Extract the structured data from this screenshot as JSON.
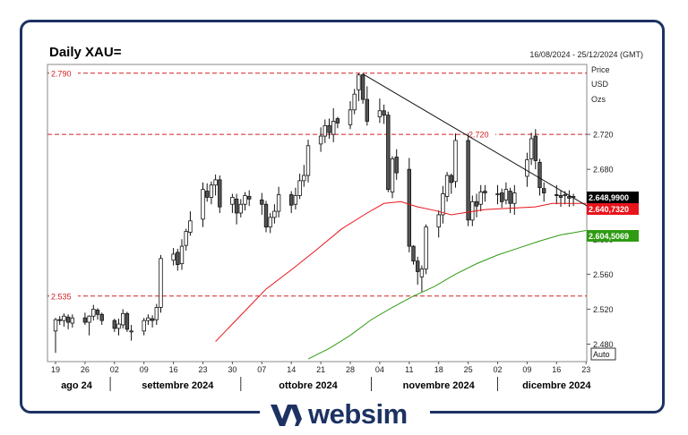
{
  "header": {
    "title": "Daily XAU=",
    "date_range": "16/08/2024 - 25/12/2024 (GMT)",
    "price_label": "Price",
    "currency_label": "USD",
    "unit_label": "Ozs",
    "auto_label": "Auto"
  },
  "brand": {
    "name": "websim",
    "color": "#1d3263"
  },
  "chart_data": {
    "type": "candlestick",
    "ylim": [
      2460,
      2800
    ],
    "yticks": [
      2480,
      2520,
      2560,
      2600,
      2640,
      2680,
      2720
    ],
    "ytick_labels": [
      "2.480",
      "2.520",
      "2.560",
      "2.600",
      "2.640",
      "2.680",
      "2.720"
    ],
    "xticks": [
      {
        "day": 0,
        "label": "19"
      },
      {
        "day": 7,
        "label": "26"
      },
      {
        "day": 14,
        "label": "02"
      },
      {
        "day": 21,
        "label": "09"
      },
      {
        "day": 28,
        "label": "16"
      },
      {
        "day": 35,
        "label": "23"
      },
      {
        "day": 42,
        "label": "30"
      },
      {
        "day": 49,
        "label": "07"
      },
      {
        "day": 56,
        "label": "14"
      },
      {
        "day": 63,
        "label": "21"
      },
      {
        "day": 70,
        "label": "28"
      },
      {
        "day": 77,
        "label": "04"
      },
      {
        "day": 84,
        "label": "11"
      },
      {
        "day": 91,
        "label": "18"
      },
      {
        "day": 98,
        "label": "25"
      },
      {
        "day": 105,
        "label": "02"
      },
      {
        "day": 112,
        "label": "09"
      },
      {
        "day": 119,
        "label": "16"
      },
      {
        "day": 126,
        "label": "23"
      }
    ],
    "months": [
      {
        "label": "ago 24",
        "day": 5
      },
      {
        "label": "settembre 2024",
        "day": 29
      },
      {
        "label": "ottobre 2024",
        "day": 60
      },
      {
        "label": "novembre 2024",
        "day": 91
      },
      {
        "label": "dicembre 2024",
        "day": 119
      }
    ],
    "month_separators": [
      13,
      44,
      75,
      105
    ],
    "hlines": [
      {
        "value": 2790,
        "label": "2.790",
        "label_pos": "left"
      },
      {
        "value": 2720,
        "label": "2.720",
        "label_pos": "right"
      },
      {
        "value": 2535,
        "label": "2.535",
        "label_pos": "left"
      }
    ],
    "trendline": {
      "x": [
        73,
        127
      ],
      "y": [
        2789,
        2636
      ]
    },
    "price_tags": [
      {
        "value": 2648.99,
        "label": "2.648,9900",
        "color": "#000000"
      },
      {
        "value": 2640.73,
        "label": "2.640,7320",
        "color": "#e8141b"
      },
      {
        "value": 2604.5069,
        "label": "2.604,5069",
        "color": "#2f9b13"
      }
    ],
    "candles": {
      "day": [
        0,
        1,
        2,
        3,
        4,
        7,
        8,
        9,
        10,
        11,
        14,
        15,
        16,
        17,
        18,
        21,
        22,
        23,
        24,
        25,
        28,
        29,
        30,
        31,
        32,
        35,
        36,
        37,
        38,
        39,
        42,
        43,
        44,
        45,
        46,
        49,
        50,
        51,
        52,
        53,
        56,
        57,
        58,
        59,
        60,
        63,
        64,
        65,
        66,
        67,
        70,
        71,
        72,
        73,
        74,
        77,
        78,
        79,
        80,
        81,
        84,
        85,
        86,
        87,
        88,
        91,
        92,
        93,
        94,
        95,
        98,
        99,
        100,
        101,
        102,
        105,
        106,
        107,
        108,
        109,
        112,
        113,
        114,
        115,
        116,
        119,
        120,
        121,
        122,
        123
      ],
      "open": [
        2495,
        2508,
        2507,
        2511,
        2504,
        2510,
        2505,
        2512,
        2519,
        2514,
        2507,
        2498,
        2502,
        2515,
        2495,
        2495,
        2507,
        2509,
        2508,
        2522,
        2576,
        2585,
        2572,
        2593,
        2608,
        2623,
        2655,
        2648,
        2662,
        2668,
        2640,
        2646,
        2630,
        2640,
        2649,
        2645,
        2640,
        2614,
        2625,
        2632,
        2651,
        2640,
        2650,
        2667,
        2673,
        2709,
        2718,
        2730,
        2720,
        2738,
        2731,
        2748,
        2771,
        2788,
        2760,
        2740,
        2747,
        2742,
        2654,
        2694,
        2680,
        2592,
        2575,
        2557,
        2566,
        2614,
        2628,
        2649,
        2673,
        2666,
        2713,
        2622,
        2643,
        2640,
        2655,
        2651,
        2653,
        2645,
        2655,
        2641,
        2672,
        2692,
        2718,
        2688,
        2658,
        2651,
        2650,
        2651,
        2649,
        2648
      ],
      "close": [
        2508,
        2507,
        2512,
        2505,
        2510,
        2505,
        2512,
        2520,
        2514,
        2507,
        2498,
        2503,
        2515,
        2497,
        2495,
        2507,
        2510,
        2507,
        2522,
        2578,
        2583,
        2571,
        2592,
        2609,
        2621,
        2657,
        2648,
        2662,
        2668,
        2637,
        2648,
        2630,
        2640,
        2650,
        2646,
        2640,
        2614,
        2625,
        2632,
        2651,
        2639,
        2650,
        2667,
        2673,
        2707,
        2718,
        2730,
        2722,
        2735,
        2733,
        2748,
        2766,
        2788,
        2760,
        2735,
        2747,
        2742,
        2657,
        2692,
        2676,
        2592,
        2575,
        2563,
        2566,
        2614,
        2628,
        2652,
        2673,
        2665,
        2713,
        2622,
        2643,
        2638,
        2654,
        2653,
        2652,
        2643,
        2657,
        2641,
        2653,
        2691,
        2715,
        2690,
        2659,
        2653,
        2650,
        2648,
        2651,
        2647,
        2649
      ],
      "high": [
        2510,
        2512,
        2515,
        2514,
        2514,
        2516,
        2513,
        2525,
        2521,
        2516,
        2509,
        2509,
        2520,
        2517,
        2502,
        2510,
        2514,
        2513,
        2526,
        2582,
        2590,
        2589,
        2600,
        2612,
        2632,
        2665,
        2664,
        2666,
        2674,
        2673,
        2652,
        2652,
        2646,
        2654,
        2656,
        2653,
        2644,
        2630,
        2640,
        2660,
        2655,
        2659,
        2675,
        2685,
        2714,
        2728,
        2737,
        2738,
        2750,
        2740,
        2758,
        2772,
        2790,
        2790,
        2775,
        2761,
        2754,
        2746,
        2695,
        2703,
        2693,
        2593,
        2580,
        2570,
        2617,
        2633,
        2661,
        2677,
        2675,
        2721,
        2721,
        2650,
        2652,
        2662,
        2662,
        2662,
        2658,
        2665,
        2659,
        2662,
        2699,
        2722,
        2726,
        2692,
        2665,
        2662,
        2656,
        2655,
        2656,
        2652
      ],
      "low": [
        2470,
        2502,
        2500,
        2497,
        2499,
        2502,
        2490,
        2507,
        2508,
        2502,
        2494,
        2490,
        2498,
        2494,
        2484,
        2490,
        2502,
        2499,
        2502,
        2516,
        2570,
        2564,
        2565,
        2587,
        2604,
        2614,
        2643,
        2640,
        2650,
        2630,
        2630,
        2617,
        2625,
        2633,
        2638,
        2628,
        2608,
        2607,
        2618,
        2625,
        2630,
        2634,
        2646,
        2660,
        2665,
        2700,
        2710,
        2715,
        2711,
        2727,
        2726,
        2743,
        2758,
        2755,
        2730,
        2733,
        2732,
        2654,
        2647,
        2668,
        2585,
        2571,
        2548,
        2540,
        2560,
        2602,
        2618,
        2643,
        2652,
        2659,
        2615,
        2615,
        2625,
        2632,
        2643,
        2640,
        2636,
        2640,
        2630,
        2628,
        2660,
        2685,
        2680,
        2650,
        2643,
        2640,
        2637,
        2640,
        2637,
        2638
      ]
    },
    "ma_red": {
      "x": [
        38,
        44,
        50,
        56,
        62,
        68,
        74,
        78,
        82,
        86,
        90,
        94,
        98,
        102,
        106,
        110,
        114,
        118,
        122,
        126
      ],
      "y": [
        2483,
        2513,
        2543,
        2565,
        2588,
        2612,
        2630,
        2641,
        2643,
        2637,
        2633,
        2628,
        2631,
        2634,
        2635,
        2636,
        2637,
        2641,
        2641,
        2641
      ]
    },
    "ma_green": {
      "x": [
        60,
        65,
        70,
        75,
        80,
        85,
        90,
        95,
        100,
        105,
        110,
        115,
        120,
        126
      ],
      "y": [
        2463,
        2475,
        2490,
        2508,
        2522,
        2535,
        2546,
        2560,
        2572,
        2582,
        2590,
        2598,
        2605,
        2610
      ]
    }
  }
}
